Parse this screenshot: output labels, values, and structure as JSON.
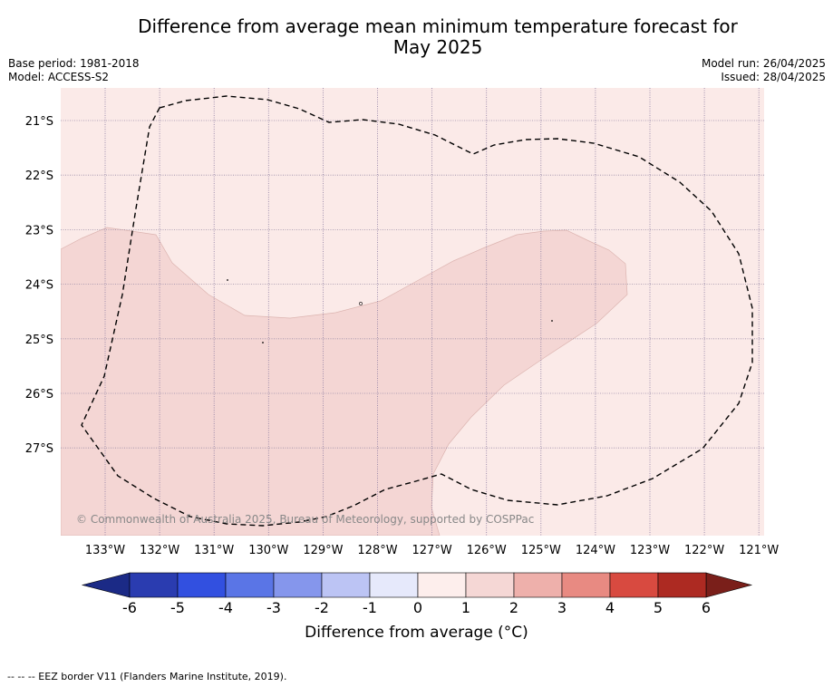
{
  "title": {
    "line1": "Difference from average mean minimum temperature forecast for",
    "line2": "May 2025"
  },
  "meta": {
    "base_period": "Base period: 1981-2018",
    "model": "Model: ACCESS-S2",
    "model_run": "Model run: 26/04/2025",
    "issued": "Issued: 28/04/2025"
  },
  "map": {
    "lat_labels": [
      "21°S",
      "22°S",
      "23°S",
      "24°S",
      "25°S",
      "26°S",
      "27°S"
    ],
    "lon_labels": [
      "133°W",
      "132°W",
      "131°W",
      "130°W",
      "129°W",
      "128°W",
      "127°W",
      "126°W",
      "125°W",
      "124°W",
      "123°W",
      "122°W",
      "121°W"
    ],
    "copyright": "© Commonwealth of Australia 2025, Bureau of Meteorology, supported by COSPPac",
    "background_color": "#fbeae8",
    "anomaly_color": "#f4d6d4"
  },
  "colorbar": {
    "ticks": [
      "-6",
      "-5",
      "-4",
      "-3",
      "-2",
      "-1",
      "0",
      "1",
      "2",
      "3",
      "4",
      "5",
      "6"
    ],
    "colors": [
      "#2a3cb0",
      "#3250e0",
      "#5a75e6",
      "#8596ec",
      "#bcc4f4",
      "#e6e9fb",
      "#fdeeec",
      "#f5d7d5",
      "#eeb0ab",
      "#e88a82",
      "#d84a40",
      "#ad2a22"
    ],
    "under_color": "#1b2a86",
    "over_color": "#7a1f1a",
    "label": "Difference from average (°C)"
  },
  "footnote": "--  --  -- EEZ border V11 (Flanders Marine Institute, 2019)."
}
